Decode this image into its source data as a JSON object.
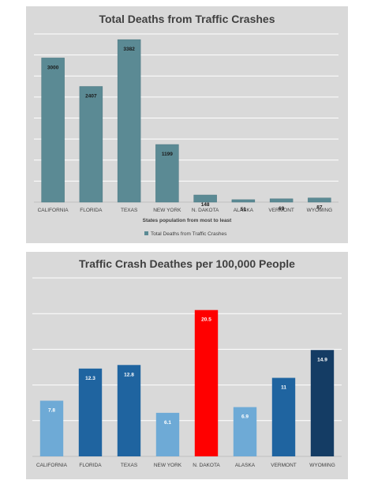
{
  "chart_data": [
    {
      "type": "bar",
      "title": "Total Deaths from Traffic Crashes",
      "xlabel": "States population from most to least",
      "ylabel": "",
      "categories": [
        "CALIFORNIA",
        "FLORIDA",
        "TEXAS",
        "NEW YORK",
        "N. DAKOTA",
        "ALASKA",
        "VERMONT",
        "WYOMING"
      ],
      "series": [
        {
          "name": "Total Deaths from Traffic Crashes",
          "values": [
            3000,
            2407,
            3382,
            1199,
            148,
            51,
            69,
            87
          ],
          "color": "#5b8a94"
        }
      ],
      "data_labels": [
        "3000",
        "2407",
        "3382",
        "1199",
        "148",
        "51",
        "69",
        "87"
      ],
      "ylim": [
        0,
        3500
      ],
      "grid": true,
      "legend": "bottom",
      "background": "#d9d9d9"
    },
    {
      "type": "bar",
      "title": "Traffic Crash Deathes per 100,000 People",
      "xlabel": "",
      "ylabel": "",
      "categories": [
        "CALIFORNIA",
        "FLORIDA",
        "TEXAS",
        "NEW YORK",
        "N. DAKOTA",
        "ALASKA",
        "VERMONT",
        "WYOMING"
      ],
      "values": [
        7.8,
        12.3,
        12.8,
        6.1,
        20.5,
        6.9,
        11,
        14.9
      ],
      "data_labels": [
        "7.8",
        "12.3",
        "12.8",
        "6.1",
        "20.5",
        "6.9",
        "11",
        "14.9"
      ],
      "bar_colors": [
        "#6eaad6",
        "#1f64a0",
        "#1f64a0",
        "#6eaad6",
        "#ff0000",
        "#6eaad6",
        "#1f64a0",
        "#143c64"
      ],
      "ylim": [
        0,
        25
      ],
      "grid": true,
      "legend": "none",
      "background": "#d9d9d9"
    }
  ]
}
